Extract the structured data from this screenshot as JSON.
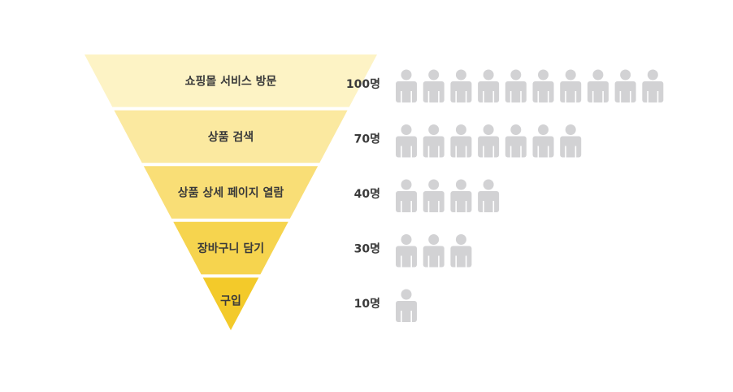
{
  "funnel": {
    "stages": [
      {
        "label": "쇼핑몰 서비스 방문",
        "count": 100,
        "count_label": "100명",
        "color": "#fdf3c5"
      },
      {
        "label": "상품 검색",
        "count": 70,
        "count_label": "70명",
        "color": "#fbe9a0"
      },
      {
        "label": "상품 상세 페이지 열람",
        "count": 40,
        "count_label": "40명",
        "color": "#f9de76"
      },
      {
        "label": "장바구니 담기",
        "count": 30,
        "count_label": "30명",
        "color": "#f6d44e"
      },
      {
        "label": "구입",
        "count": 10,
        "count_label": "10명",
        "color": "#f3ca2a"
      }
    ],
    "person_icon_unit": 10,
    "icon_color": "#d2d2d4"
  }
}
